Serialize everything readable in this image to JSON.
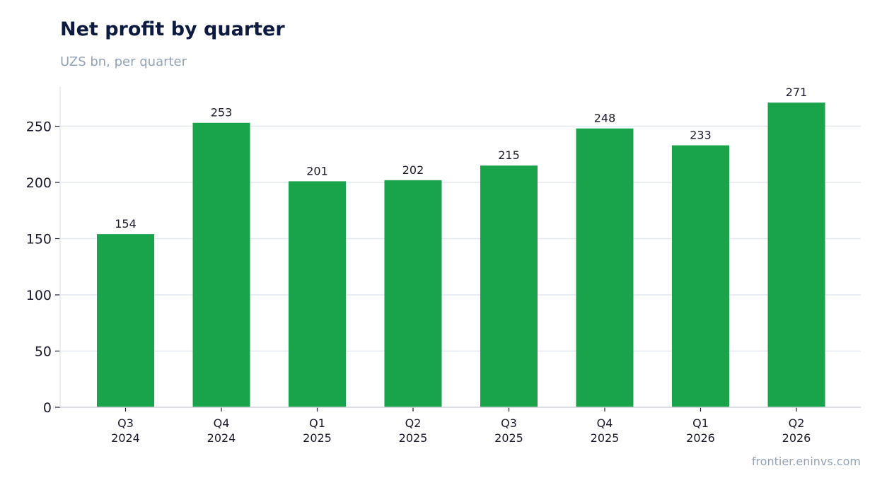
{
  "title": "Net profit by quarter",
  "subtitle": "UZS bn, per quarter",
  "source": "frontier.eninvs.com",
  "colors": {
    "bar": "#19a34a",
    "grid": "#e3e7ef",
    "axis": "#cfd4dc",
    "text": "#1a1a2e"
  },
  "chart_data": {
    "type": "bar",
    "title": "Net profit by quarter",
    "subtitle": "UZS bn, per quarter",
    "xlabel": "",
    "ylabel": "",
    "categories": [
      [
        "Q3",
        "2024"
      ],
      [
        "Q4",
        "2024"
      ],
      [
        "Q1",
        "2025"
      ],
      [
        "Q2",
        "2025"
      ],
      [
        "Q3",
        "2025"
      ],
      [
        "Q4",
        "2025"
      ],
      [
        "Q1",
        "2026"
      ],
      [
        "Q2",
        "2026"
      ]
    ],
    "values": [
      154,
      253,
      201,
      202,
      215,
      248,
      233,
      271
    ],
    "value_labels": [
      "154",
      "253",
      "201",
      "202",
      "215",
      "248",
      "233",
      "271"
    ],
    "yticks": [
      0,
      50,
      100,
      150,
      200,
      250
    ],
    "ylim": [
      0,
      284
    ],
    "grid": "horizontal",
    "legend": "none"
  }
}
